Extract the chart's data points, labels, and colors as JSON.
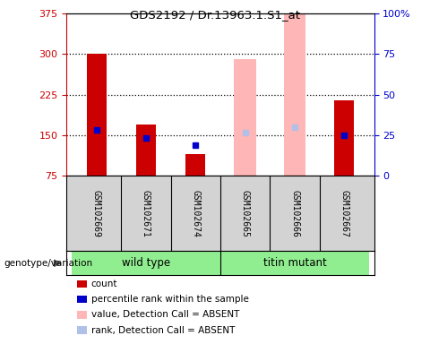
{
  "title": "GDS2192 / Dr.13963.1.S1_at",
  "samples": [
    "GSM102669",
    "GSM102671",
    "GSM102674",
    "GSM102665",
    "GSM102666",
    "GSM102667"
  ],
  "bar_bottom": 75,
  "red_bars": [
    300,
    170,
    115,
    null,
    null,
    215
  ],
  "pink_bars": [
    null,
    null,
    null,
    290,
    375,
    null
  ],
  "blue_markers": [
    160,
    145,
    132,
    null,
    null,
    150
  ],
  "lightblue_markers": [
    null,
    null,
    null,
    155,
    165,
    null
  ],
  "ylim_left": [
    75,
    375
  ],
  "ylim_right": [
    0,
    100
  ],
  "left_ticks": [
    75,
    150,
    225,
    300,
    375
  ],
  "right_ticks": [
    0,
    25,
    50,
    75,
    100
  ],
  "right_tick_labels": [
    "0",
    "25",
    "50",
    "75",
    "100%"
  ],
  "red_color": "#cc0000",
  "pink_color": "#ffb6b6",
  "blue_color": "#0000cc",
  "lightblue_color": "#b0c0e8",
  "left_axis_color": "#cc0000",
  "right_axis_color": "#0000cc",
  "bg_color": "#d3d3d3",
  "group_bg_color": "#90ee90",
  "group_label_1": "wild type",
  "group_label_2": "titin mutant",
  "genotype_label": "genotype/variation",
  "legend_items": [
    {
      "label": "count",
      "color": "#cc0000"
    },
    {
      "label": "percentile rank within the sample",
      "color": "#0000cc"
    },
    {
      "label": "value, Detection Call = ABSENT",
      "color": "#ffb6b6"
    },
    {
      "label": "rank, Detection Call = ABSENT",
      "color": "#b0c0e8"
    }
  ]
}
